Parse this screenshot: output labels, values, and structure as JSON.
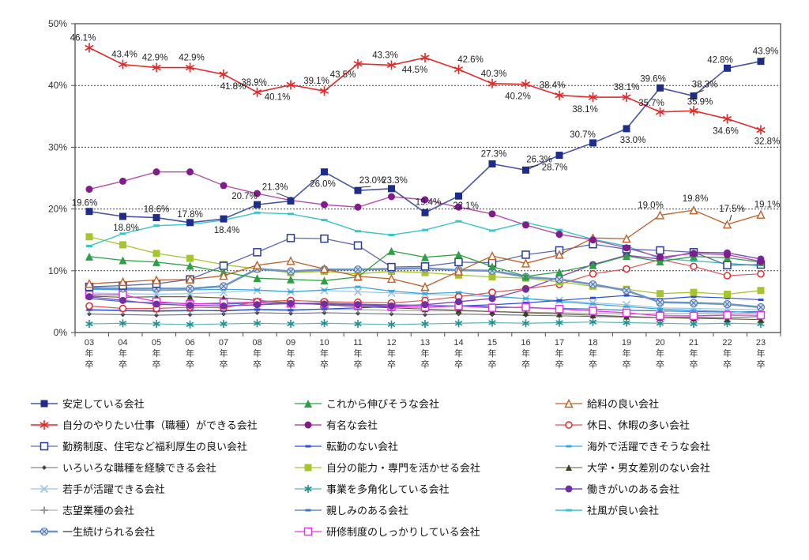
{
  "chart_data": {
    "type": "line",
    "title": "",
    "x_categories": [
      "03",
      "04",
      "05",
      "06",
      "07",
      "08",
      "09",
      "10",
      "11",
      "12",
      "13",
      "14",
      "15",
      "16",
      "17",
      "18",
      "19",
      "20",
      "21",
      "22",
      "23"
    ],
    "x_label_suffix_lines": [
      "年",
      "卒"
    ],
    "y_ticks": [
      "0%",
      "10%",
      "20%",
      "30%",
      "40%",
      "50%"
    ],
    "ylim": [
      0,
      50
    ],
    "grid": "horizontal dashed lines every 10%",
    "legend_position": "bottom, 3 columns",
    "draw_order": [
      13,
      9,
      15,
      11,
      16,
      12,
      8,
      7,
      19,
      5,
      14,
      10,
      17,
      18,
      6,
      1,
      2,
      4,
      0,
      3
    ],
    "series": [
      {
        "name": "安定している会社",
        "marker": "square",
        "color": "#1F2D8A",
        "line_color": "#4A55A2",
        "line_width": 1.6,
        "marker_size": 9,
        "values": [
          19.6,
          18.8,
          18.6,
          17.8,
          18.4,
          20.7,
          21.3,
          26.0,
          23.0,
          23.3,
          19.4,
          22.1,
          27.3,
          26.3,
          28.7,
          30.7,
          33.0,
          39.6,
          38.3,
          42.8,
          43.9
        ],
        "labels": [
          {
            "i": 0,
            "dx": -6,
            "dy": -7
          },
          {
            "i": 1,
            "dx": 4,
            "dy": 18
          },
          {
            "i": 2,
            "dx": 0,
            "dy": -7
          },
          {
            "i": 3,
            "dx": 0,
            "dy": -7
          },
          {
            "i": 4,
            "dx": 4,
            "dy": 18
          },
          {
            "i": 5,
            "dx": -16,
            "dy": -7
          },
          {
            "i": 6,
            "dx": -20,
            "dy": -14,
            "leader": true
          },
          {
            "i": 7,
            "dx": -2,
            "dy": 19
          },
          {
            "i": 8,
            "dx": 18,
            "dy": -9,
            "leader": true
          },
          {
            "i": 9,
            "dx": 4,
            "dy": -7
          },
          {
            "i": 10,
            "dx": 4,
            "dy": -10,
            "leader": true
          },
          {
            "i": 11,
            "dx": 9,
            "dy": 16
          },
          {
            "i": 12,
            "dx": 2,
            "dy": -9
          },
          {
            "i": 13,
            "dx": 17,
            "dy": -10,
            "leader": true
          },
          {
            "i": 14,
            "dx": -6,
            "dy": 19
          },
          {
            "i": 15,
            "dx": -13,
            "dy": -7
          },
          {
            "i": 16,
            "dx": 8,
            "dy": 18
          },
          {
            "i": 17,
            "dx": -9,
            "dy": -8
          },
          {
            "i": 18,
            "dx": 14,
            "dy": -11,
            "leader": true
          },
          {
            "i": 19,
            "dx": -9,
            "dy": -7
          },
          {
            "i": 20,
            "dx": 6,
            "dy": -9,
            "leader": true
          }
        ]
      },
      {
        "name": "これから伸びそうな会社",
        "marker": "triangle",
        "color": "#2E9F44",
        "line_color": "#2E9F44",
        "line_width": 1.3,
        "marker_size": 10,
        "values": [
          12.3,
          11.7,
          11.4,
          10.8,
          9.8,
          8.8,
          8.6,
          8.4,
          9.0,
          13.2,
          12.2,
          12.6,
          10.7,
          9.1,
          9.8,
          10.9,
          12.4,
          11.5,
          12.3,
          12.1,
          11.4
        ]
      },
      {
        "name": "給料の良い会社",
        "marker": "triangle-open",
        "color": "#BE6028",
        "line_color": "#BE6028",
        "line_width": 1.3,
        "marker_size": 9,
        "values": [
          7.9,
          8.2,
          8.5,
          8.6,
          9.2,
          10.9,
          11.6,
          10.3,
          9.1,
          8.7,
          7.4,
          9.9,
          12.4,
          11.2,
          12.6,
          15.3,
          15.2,
          19.0,
          19.8,
          17.5,
          19.1
        ],
        "labels": [
          {
            "i": 17,
            "dx": -12,
            "dy": -9
          },
          {
            "i": 18,
            "dx": 2,
            "dy": -11
          },
          {
            "i": 19,
            "dx": 6,
            "dy": -16,
            "leader": true
          },
          {
            "i": 20,
            "dx": 8,
            "dy": -9
          }
        ]
      },
      {
        "name": "自分のやりたい仕事（職種）ができる会社",
        "marker": "asterisk",
        "color": "#E02B2B",
        "line_color": "#E02B2B",
        "line_width": 1.6,
        "marker_size": 12,
        "values": [
          46.1,
          43.4,
          42.9,
          42.9,
          41.8,
          38.9,
          40.1,
          39.1,
          43.5,
          43.3,
          44.5,
          42.6,
          40.3,
          40.2,
          38.4,
          38.1,
          38.1,
          35.7,
          35.9,
          34.6,
          32.8
        ],
        "labels": [
          {
            "i": 0,
            "dx": -8,
            "dy": -9
          },
          {
            "i": 1,
            "dx": 2,
            "dy": -9
          },
          {
            "i": 2,
            "dx": -2,
            "dy": -9
          },
          {
            "i": 3,
            "dx": 2,
            "dy": -9
          },
          {
            "i": 4,
            "dx": 12,
            "dy": 19
          },
          {
            "i": 5,
            "dx": -4,
            "dy": -9
          },
          {
            "i": 6,
            "dx": -17,
            "dy": 19
          },
          {
            "i": 7,
            "dx": -10,
            "dy": -9
          },
          {
            "i": 8,
            "dx": -19,
            "dy": 17
          },
          {
            "i": 9,
            "dx": -8,
            "dy": -9
          },
          {
            "i": 10,
            "dx": -13,
            "dy": 19
          },
          {
            "i": 11,
            "dx": 15,
            "dy": -9
          },
          {
            "i": 12,
            "dx": 2,
            "dy": -9
          },
          {
            "i": 13,
            "dx": -10,
            "dy": 19
          },
          {
            "i": 14,
            "dx": -9,
            "dy": -9
          },
          {
            "i": 15,
            "dx": -10,
            "dy": 19
          },
          {
            "i": 16,
            "dx": 0,
            "dy": -9
          },
          {
            "i": 17,
            "dx": -11,
            "dy": -8
          },
          {
            "i": 18,
            "dx": 8,
            "dy": -8
          },
          {
            "i": 19,
            "dx": -2,
            "dy": 19
          },
          {
            "i": 20,
            "dx": 8,
            "dy": 18
          }
        ]
      },
      {
        "name": "有名な会社",
        "marker": "circle",
        "color": "#801C8C",
        "line_color": "#B44FB4",
        "line_width": 1.4,
        "marker_size": 9,
        "values": [
          23.2,
          24.5,
          26.0,
          26.0,
          23.8,
          22.5,
          21.4,
          20.7,
          20.3,
          22.0,
          21.5,
          20.3,
          19.2,
          17.4,
          15.9,
          15.0,
          13.7,
          12.2,
          12.8,
          12.6,
          11.5
        ]
      },
      {
        "name": "休日、休暇の多い会社",
        "marker": "circle-open",
        "color": "#E02B2B",
        "line_color": "#E25555",
        "line_width": 1.2,
        "marker_size": 8,
        "values": [
          4.3,
          3.9,
          3.9,
          4.1,
          4.0,
          5.0,
          5.2,
          5.0,
          4.9,
          4.8,
          5.2,
          5.8,
          6.5,
          7.1,
          7.8,
          9.5,
          10.3,
          11.8,
          10.7,
          9.2,
          9.5
        ]
      },
      {
        "name": "勤務制度、住宅など福利厚生の良い会社",
        "marker": "square-open",
        "color": "#2A3A96",
        "line_color": "#5A67AE",
        "line_width": 1.3,
        "marker_size": 9,
        "values": [
          7.4,
          7.6,
          7.9,
          8.6,
          10.8,
          13.0,
          15.3,
          15.2,
          14.1,
          10.6,
          10.7,
          11.4,
          11.3,
          12.6,
          13.3,
          14.3,
          13.5,
          13.3,
          13.0,
          10.9,
          11.0
        ]
      },
      {
        "name": "転勤のない会社",
        "marker": "dash",
        "color": "#2F4FD0",
        "line_color": "#2F4FD0",
        "line_width": 1.2,
        "marker_size": 7,
        "values": [
          3.7,
          3.6,
          3.5,
          3.6,
          3.5,
          3.7,
          3.6,
          3.8,
          4.0,
          4.2,
          4.1,
          4.3,
          4.5,
          4.8,
          5.2,
          5.6,
          6.0,
          5.4,
          5.8,
          5.6,
          5.3
        ]
      },
      {
        "name": "海外で活躍できそうな会社",
        "marker": "dash",
        "color": "#35A8DC",
        "line_color": "#35A8DC",
        "line_width": 1.2,
        "marker_size": 7,
        "values": [
          7.0,
          6.9,
          6.8,
          6.9,
          7.0,
          6.9,
          6.6,
          6.9,
          7.4,
          6.7,
          6.3,
          6.5,
          5.9,
          5.5,
          5.0,
          4.6,
          4.2,
          3.8,
          3.6,
          3.4,
          3.2
        ]
      },
      {
        "name": "いろいろな職種を経験できる会社",
        "marker": "diamond",
        "color": "#44444E",
        "line_color": "#6A6A75",
        "line_width": 1.1,
        "marker_size": 6,
        "values": [
          3.0,
          2.9,
          2.8,
          2.9,
          3.0,
          3.2,
          3.1,
          3.2,
          3.1,
          3.0,
          2.9,
          3.0,
          2.9,
          2.8,
          2.7,
          2.6,
          2.5,
          2.4,
          2.5,
          2.4,
          2.6
        ]
      },
      {
        "name": "自分の能力・専門を活かせる会社",
        "marker": "square",
        "color": "#A6C42E",
        "line_color": "#A6C42E",
        "line_width": 1.3,
        "marker_size": 9,
        "values": [
          15.5,
          14.2,
          12.8,
          12.0,
          11.0,
          10.3,
          9.7,
          9.9,
          9.5,
          9.9,
          9.7,
          9.3,
          9.0,
          8.8,
          8.2,
          7.5,
          7.0,
          6.3,
          6.5,
          6.2,
          6.8
        ]
      },
      {
        "name": "大学・男女差別のない会社",
        "marker": "triangle",
        "color": "#3E3E20",
        "line_color": "#5A5A35",
        "line_width": 1.1,
        "marker_size": 8,
        "values": [
          5.9,
          5.7,
          5.8,
          5.8,
          5.6,
          5.2,
          4.8,
          4.5,
          4.2,
          4.0,
          3.8,
          3.6,
          3.4,
          3.2,
          3.0,
          2.8,
          2.6,
          2.4,
          2.3,
          2.2,
          2.1
        ]
      },
      {
        "name": "若手が活躍できる会社",
        "marker": "x",
        "color": "#9DC3E6",
        "line_color": "#9DC3E6",
        "line_width": 1.2,
        "marker_size": 9,
        "values": [
          6.4,
          6.3,
          6.2,
          6.3,
          6.5,
          6.8,
          6.6,
          6.8,
          6.6,
          6.4,
          6.2,
          6.0,
          5.8,
          5.5,
          5.2,
          4.8,
          4.5,
          4.0,
          3.9,
          3.8,
          3.7
        ]
      },
      {
        "name": "事業を多角化している会社",
        "marker": "asterisk",
        "color": "#1F8F8F",
        "line_color": "#5FB5B5",
        "line_width": 1.2,
        "marker_size": 10,
        "values": [
          1.4,
          1.5,
          1.4,
          1.3,
          1.4,
          1.5,
          1.4,
          1.5,
          1.4,
          1.3,
          1.4,
          1.5,
          1.6,
          1.5,
          1.6,
          1.7,
          1.6,
          1.5,
          1.4,
          1.5,
          1.4
        ]
      },
      {
        "name": "働きがいのある会社",
        "marker": "circle",
        "color": "#7030A0",
        "line_color": "#8446B4",
        "line_width": 1.4,
        "marker_size": 9,
        "values": [
          5.8,
          5.2,
          4.6,
          4.4,
          4.3,
          4.5,
          4.7,
          4.6,
          4.5,
          4.3,
          4.5,
          5.0,
          5.5,
          7.0,
          9.0,
          11.0,
          12.5,
          11.9,
          13.0,
          12.9,
          11.9
        ]
      },
      {
        "name": "志望業種の会社",
        "marker": "plus",
        "color": "#8C8C8C",
        "line_color": "#9C9C9C",
        "line_width": 1.1,
        "marker_size": 9,
        "values": [
          3.6,
          3.5,
          3.4,
          3.5,
          3.6,
          3.8,
          3.7,
          3.8,
          3.7,
          3.6,
          3.5,
          3.5,
          3.4,
          3.3,
          3.2,
          3.1,
          3.0,
          3.0,
          3.1,
          3.0,
          3.2
        ]
      },
      {
        "name": "親しみのある会社",
        "marker": "dash",
        "color": "#4472C4",
        "line_color": "#4472C4",
        "line_width": 1.2,
        "marker_size": 7,
        "values": [
          5.5,
          5.0,
          4.8,
          4.7,
          4.6,
          4.8,
          4.7,
          4.8,
          4.6,
          4.5,
          4.4,
          4.3,
          4.2,
          4.0,
          3.9,
          3.8,
          3.6,
          3.5,
          3.4,
          3.3,
          3.4
        ]
      },
      {
        "name": "社風が良い会社",
        "marker": "dash",
        "color": "#38C5C5",
        "line_color": "#38C5C5",
        "line_width": 1.4,
        "marker_size": 8,
        "values": [
          14.0,
          16.0,
          17.3,
          17.5,
          18.2,
          19.4,
          19.2,
          18.2,
          16.4,
          15.8,
          16.6,
          18.0,
          16.5,
          17.8,
          16.6,
          15.1,
          14.0,
          12.0,
          11.6,
          11.2,
          10.8
        ]
      },
      {
        "name": "一生続けられる会社",
        "marker": "circle-x",
        "color": "#87A9D4",
        "line_color": "#6E94C4",
        "line_width": 2.6,
        "marker_size": 9,
        "values": [
          7.2,
          7.1,
          7.1,
          7.1,
          7.5,
          10.3,
          9.9,
          10.2,
          10.2,
          10.3,
          10.4,
          10.1,
          10.0,
          9.0,
          8.6,
          7.8,
          6.8,
          4.9,
          4.8,
          4.6,
          4.1
        ]
      },
      {
        "name": "研修制度のしっかりしている会社",
        "marker": "square-open",
        "color": "#E930E9",
        "line_color": "#E930E9",
        "line_width": 1.3,
        "marker_size": 9,
        "values": [
          6.1,
          6.1,
          5.0,
          4.6,
          4.8,
          4.9,
          4.7,
          4.6,
          4.4,
          4.2,
          4.1,
          4.3,
          4.0,
          4.1,
          3.8,
          3.5,
          3.2,
          2.7,
          2.7,
          2.8,
          2.8
        ]
      }
    ],
    "legend_columns": [
      [
        0,
        3,
        6,
        9,
        12,
        15,
        18
      ],
      [
        1,
        4,
        7,
        10,
        13,
        16,
        19
      ],
      [
        2,
        5,
        8,
        11,
        14,
        17
      ]
    ]
  },
  "style": {
    "plot_border_color": "#4D4D4D",
    "grid_color": "#404040",
    "tick_label_color": "#333333",
    "data_label_color": "#1F1F1F",
    "background": "#FFFFFF"
  }
}
